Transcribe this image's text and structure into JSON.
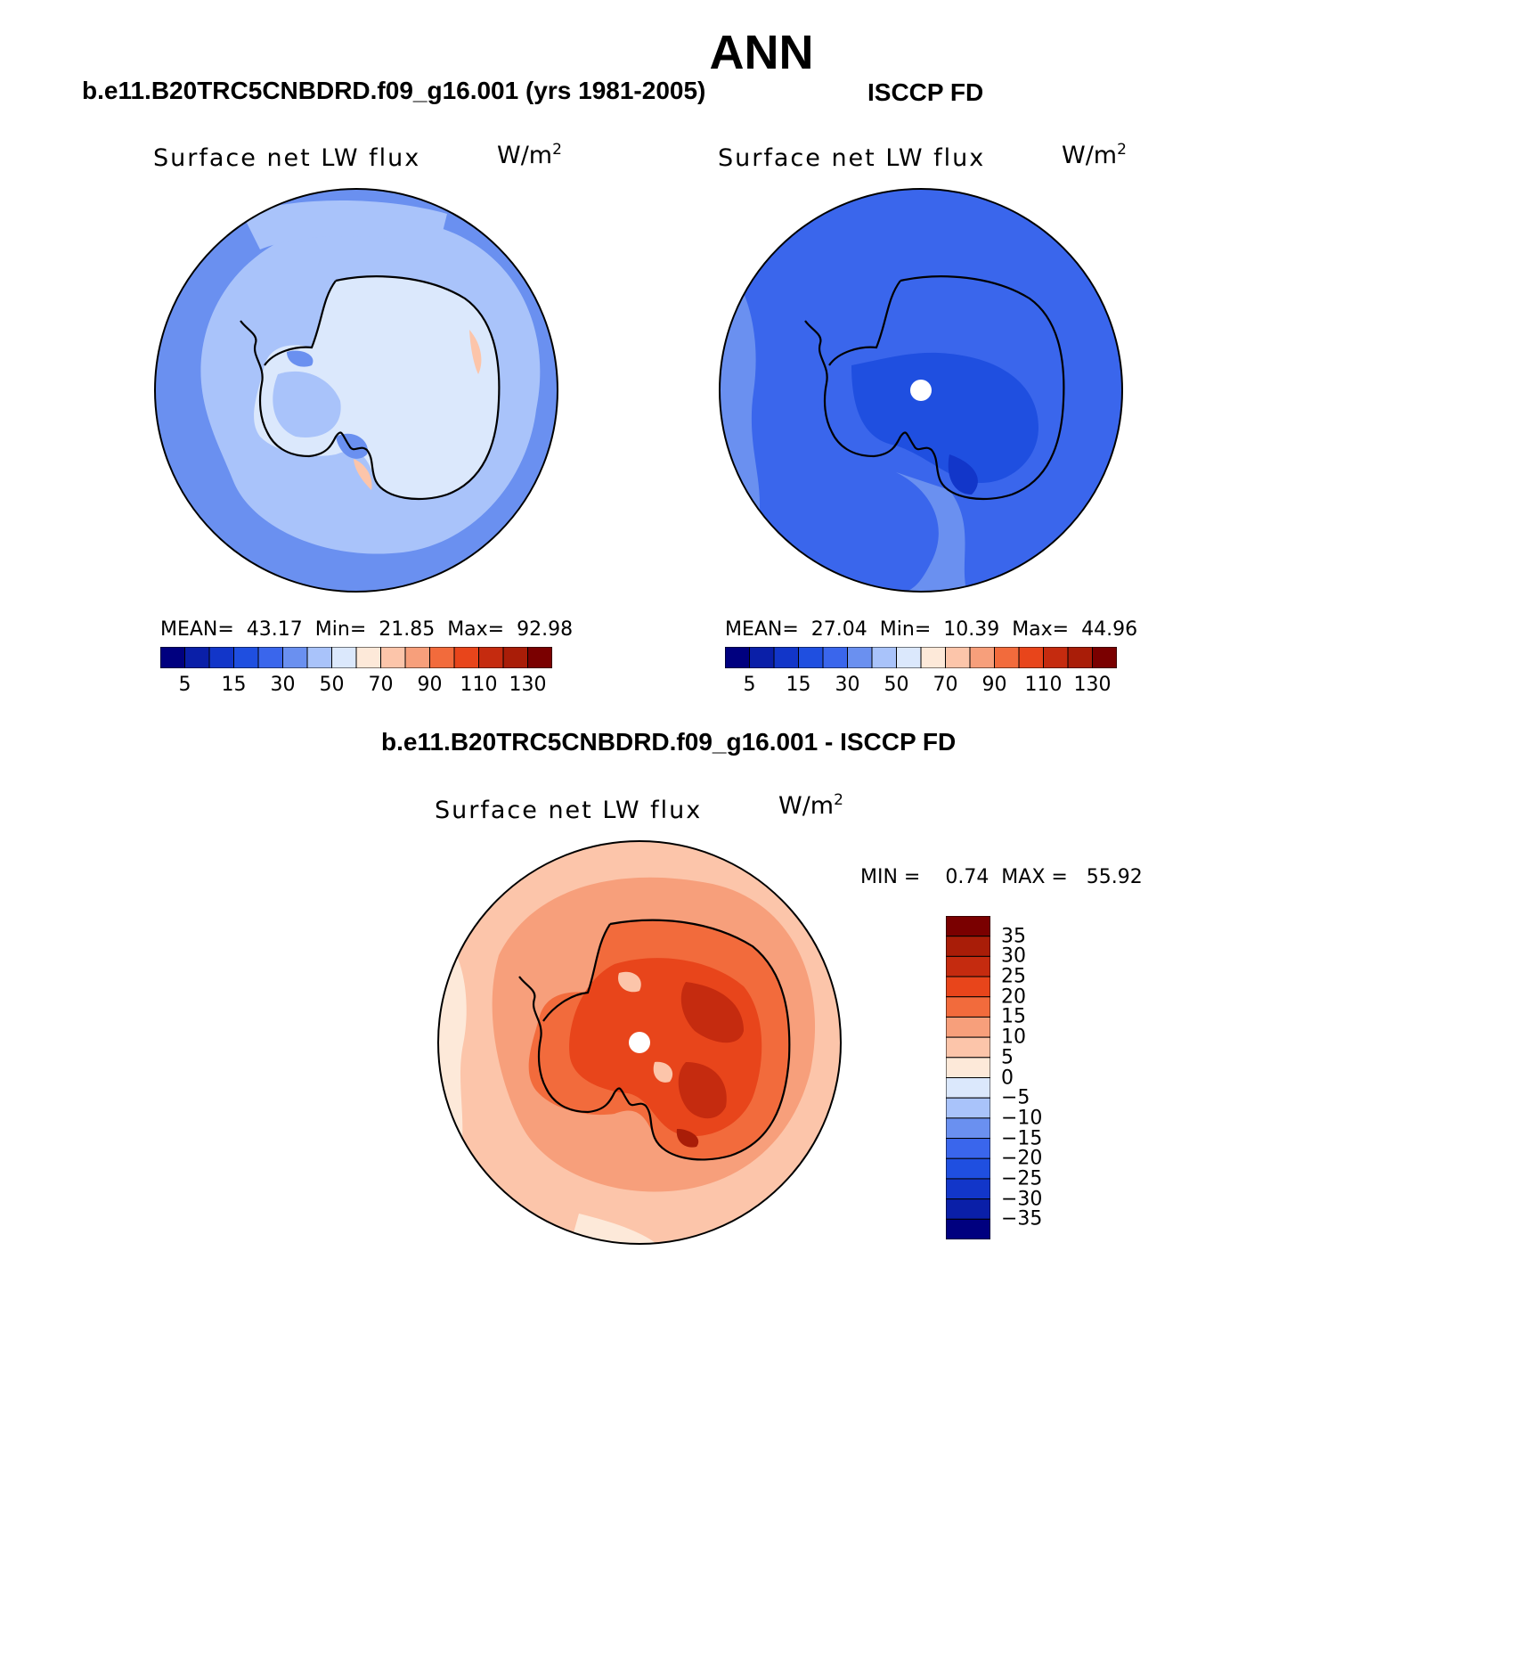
{
  "title": "ANN",
  "panels": {
    "model": {
      "title": "b.e11.B20TRC5CNBDRD.f09_g16.001 (yrs 1981-2005)",
      "label": "Surface net LW flux",
      "unit_base": "W/m",
      "unit_exp": "2",
      "stats_text": "MEAN=  43.17  Min=  21.85  Max=  92.98"
    },
    "obs": {
      "title": "ISCCP FD",
      "label": "Surface net LW flux",
      "unit_base": "W/m",
      "unit_exp": "2",
      "stats_text": "MEAN=  27.04  Min=  10.39  Max=  44.96"
    },
    "diff": {
      "title": "b.e11.B20TRC5CNBDRD.f09_g16.001 - ISCCP FD",
      "label": "Surface net LW flux",
      "unit_base": "W/m",
      "unit_exp": "2",
      "minmax_text": "MIN =    0.74  MAX =   55.92"
    }
  },
  "chart_data": [
    {
      "type": "heatmap",
      "projection": "south-polar-stereographic",
      "title": "b.e11.B20TRC5CNBDRD.f09_g16.001 (yrs 1981-2005)",
      "variable": "Surface net LW flux",
      "units": "W/m2",
      "mean": 43.17,
      "min": 21.85,
      "max": 92.98,
      "colorbar": {
        "orientation": "horizontal",
        "levels": [
          5,
          10,
          15,
          20,
          30,
          40,
          50,
          60,
          70,
          80,
          90,
          100,
          110,
          120,
          130
        ],
        "tick_labels": [
          "5",
          "15",
          "30",
          "50",
          "70",
          "90",
          "110",
          "130"
        ],
        "colors": [
          "#00007f",
          "#0a1fa8",
          "#1236c9",
          "#1f4fe0",
          "#3a66ec",
          "#6a90f0",
          "#a9c3fa",
          "#dbe8fc",
          "#fde9d9",
          "#fcc5aa",
          "#f79f7b",
          "#f26b3c",
          "#e8451b",
          "#c52b0f",
          "#a91d08",
          "#7a0000"
        ]
      },
      "map_regions": {
        "ocean_far": 30,
        "ocean_near": 50,
        "continent": 60,
        "warm_coast": 70
      }
    },
    {
      "type": "heatmap",
      "projection": "south-polar-stereographic",
      "title": "ISCCP FD",
      "variable": "Surface net LW flux",
      "units": "W/m2",
      "mean": 27.04,
      "min": 10.39,
      "max": 44.96,
      "colorbar": {
        "orientation": "horizontal",
        "levels": [
          5,
          10,
          15,
          20,
          30,
          40,
          50,
          60,
          70,
          80,
          90,
          100,
          110,
          120,
          130
        ],
        "tick_labels": [
          "5",
          "15",
          "30",
          "50",
          "70",
          "90",
          "110",
          "130"
        ],
        "colors": [
          "#00007f",
          "#0a1fa8",
          "#1236c9",
          "#1f4fe0",
          "#3a66ec",
          "#6a90f0",
          "#a9c3fa",
          "#dbe8fc",
          "#fde9d9",
          "#fcc5aa",
          "#f79f7b",
          "#f26b3c",
          "#e8451b",
          "#c52b0f",
          "#a91d08",
          "#7a0000"
        ]
      },
      "map_regions": {
        "ocean_far": 30,
        "ocean_near": 40,
        "continent": 20,
        "continent_core": 15
      }
    },
    {
      "type": "heatmap",
      "projection": "south-polar-stereographic",
      "title": "b.e11.B20TRC5CNBDRD.f09_g16.001 - ISCCP FD",
      "variable": "Surface net LW flux",
      "units": "W/m2",
      "min": 0.74,
      "max": 55.92,
      "colorbar": {
        "orientation": "vertical",
        "levels": [
          -35,
          -30,
          -25,
          -20,
          -15,
          -10,
          -5,
          0,
          5,
          10,
          15,
          20,
          25,
          30,
          35
        ],
        "tick_labels": [
          "35",
          "30",
          "25",
          "20",
          "15",
          "10",
          "5",
          "0",
          "−5",
          "−10",
          "−15",
          "−20",
          "−25",
          "−30",
          "−35"
        ],
        "colors": [
          "#7a0000",
          "#a91d08",
          "#c52b0f",
          "#e8451b",
          "#f26b3c",
          "#f79f7b",
          "#fcc5aa",
          "#fde9d9",
          "#dbe8fc",
          "#a9c3fa",
          "#6a90f0",
          "#3a66ec",
          "#1f4fe0",
          "#1236c9",
          "#0a1fa8",
          "#00007f"
        ]
      },
      "map_regions": {
        "ocean_far": 5,
        "ocean_near": 15,
        "continent": 25,
        "continent_core": 35
      }
    }
  ]
}
